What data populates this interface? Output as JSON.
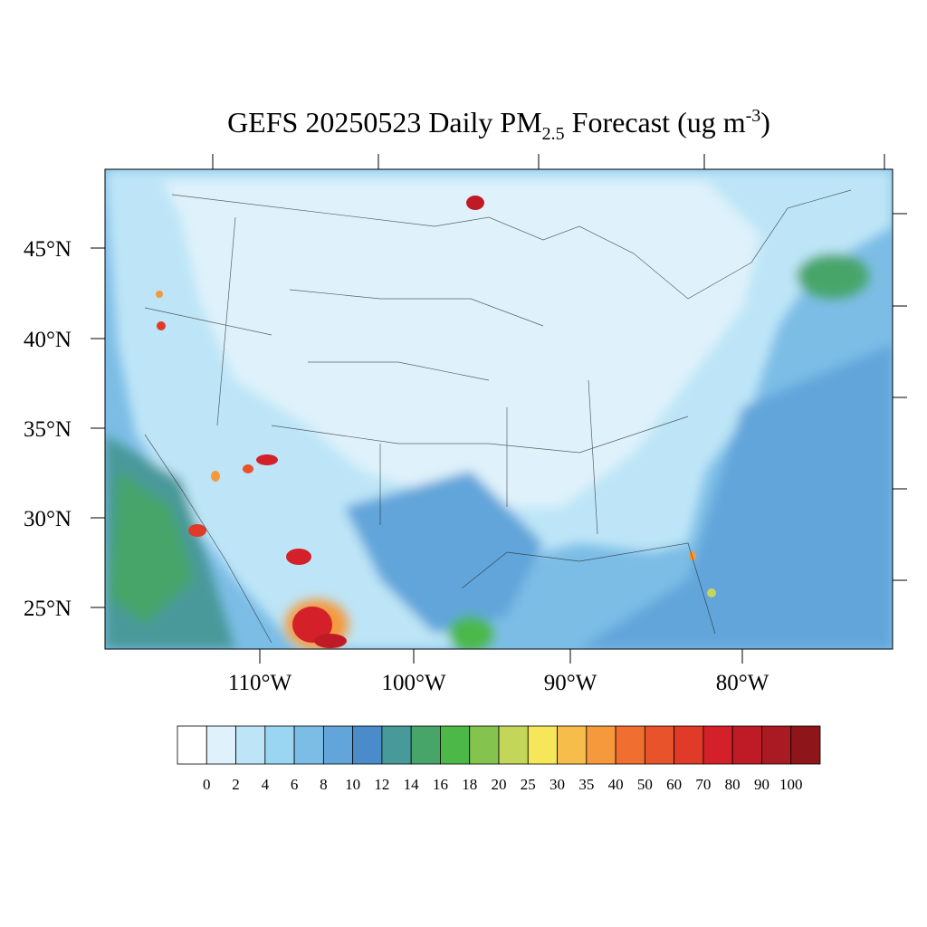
{
  "title": {
    "main": "GEFS 20250523 Daily PM",
    "subscript": "2.5",
    "middle": " Forecast (ug m",
    "superscript": "-3",
    "close": ")"
  },
  "lat_labels": [
    "45°N",
    "40°N",
    "35°N",
    "30°N",
    "25°N"
  ],
  "lon_labels": [
    "110°W",
    "100°W",
    "90°W",
    "80°W"
  ],
  "colorbar": {
    "levels": [
      0,
      2,
      4,
      6,
      8,
      10,
      12,
      14,
      16,
      18,
      20,
      25,
      30,
      35,
      40,
      50,
      60,
      70,
      80,
      90,
      100
    ],
    "colors": [
      "#ffffff",
      "#dff2fb",
      "#bde5f7",
      "#9ad6f2",
      "#7cbde6",
      "#62a5da",
      "#4a8bc9",
      "#48999a",
      "#47a56a",
      "#4cb848",
      "#84c44e",
      "#c3d65a",
      "#f5e65a",
      "#f7bd4a",
      "#f5993c",
      "#f06e2f",
      "#e9532c",
      "#e03a28",
      "#d42029",
      "#bf1b27",
      "#aa1a22",
      "#8e1519"
    ]
  }
}
